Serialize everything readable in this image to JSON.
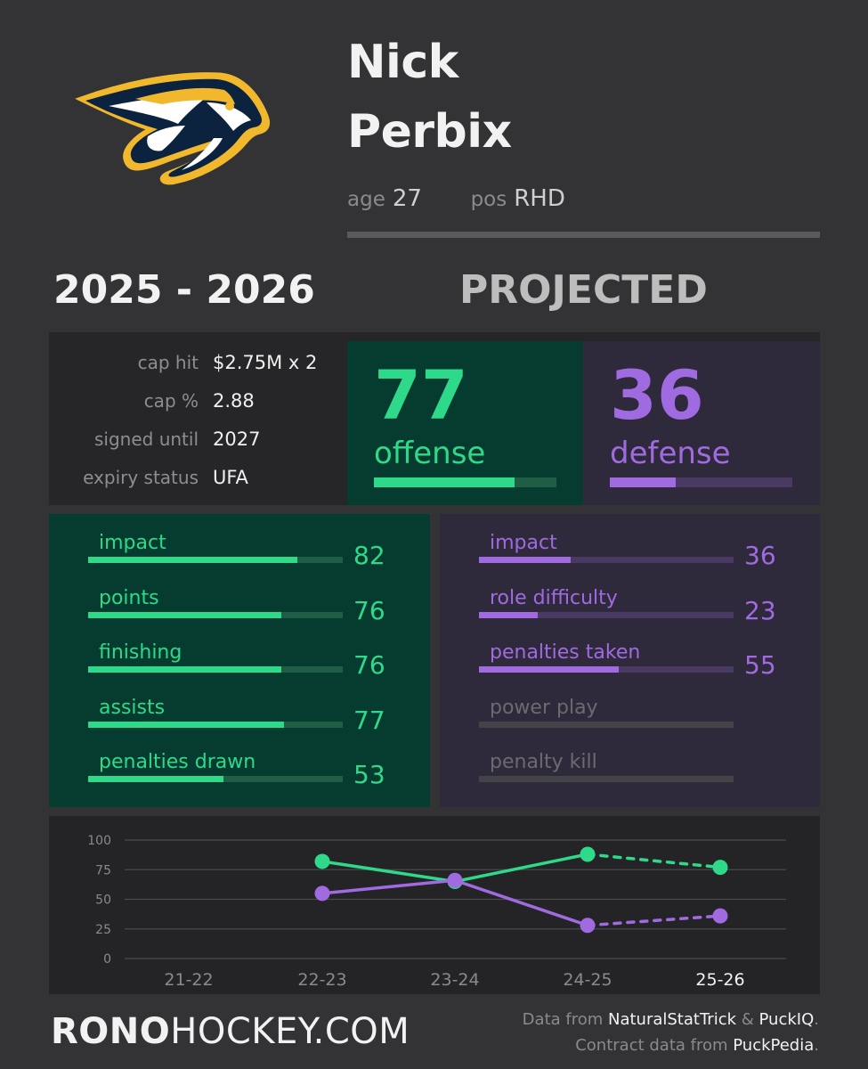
{
  "colors": {
    "offense": "#2fd98a",
    "offense_track": "#1f5e45",
    "defense": "#a06ae0",
    "defense_track": "#4a3a63",
    "inactive": "#6b6b6f",
    "inactive_track": "#444448"
  },
  "logo": {
    "icon": "nashville-predators-logo"
  },
  "player": {
    "first_name": "Nick",
    "last_name": "Perbix",
    "age_label": "age",
    "age": "27",
    "pos_label": "pos",
    "pos": "RHD"
  },
  "season": "2025 - 2026",
  "status": "PROJECTED",
  "contract": [
    {
      "label": "cap hit",
      "value": "$2.75M x 2"
    },
    {
      "label": "cap %",
      "value": "2.88"
    },
    {
      "label": "signed until",
      "value": "2027"
    },
    {
      "label": "expiry status",
      "value": "UFA"
    }
  ],
  "offense": {
    "score": "77",
    "label": "offense",
    "fraction": 0.77
  },
  "defense": {
    "score": "36",
    "label": "defense",
    "fraction": 0.36
  },
  "offense_metrics": [
    {
      "label": "impact",
      "value": "82",
      "fraction": 0.82
    },
    {
      "label": "points",
      "value": "76",
      "fraction": 0.76
    },
    {
      "label": "finishing",
      "value": "76",
      "fraction": 0.76
    },
    {
      "label": "assists",
      "value": "77",
      "fraction": 0.77
    },
    {
      "label": "penalties drawn",
      "value": "53",
      "fraction": 0.53
    }
  ],
  "defense_metrics": [
    {
      "label": "impact",
      "value": "36",
      "fraction": 0.36,
      "active": true
    },
    {
      "label": "role difficulty",
      "value": "23",
      "fraction": 0.23,
      "active": true
    },
    {
      "label": "penalties taken",
      "value": "55",
      "fraction": 0.55,
      "active": true
    },
    {
      "label": "power play",
      "value": "",
      "fraction": 0,
      "active": false
    },
    {
      "label": "penalty kill",
      "value": "",
      "fraction": 0,
      "active": false
    }
  ],
  "chart_data": {
    "type": "line",
    "categories": [
      "21-22",
      "22-23",
      "23-24",
      "24-25",
      "25-26"
    ],
    "highlight_category": "25-26",
    "ylim": [
      0,
      100
    ],
    "yticks": [
      "0",
      "25",
      "50",
      "75",
      "100"
    ],
    "grid": true,
    "series": [
      {
        "key": "offense",
        "values": [
          null,
          82,
          65,
          88,
          77
        ],
        "projected_from_index": 3
      },
      {
        "key": "defense",
        "values": [
          null,
          55,
          66,
          28,
          36
        ],
        "projected_from_index": 3
      }
    ]
  },
  "footer": {
    "brand_bold": "RONO",
    "brand_light": "HOCKEY.COM",
    "credits_line1_prefix": "Data from ",
    "credits_source1": "NaturalStatTrick",
    "credits_amp": " & ",
    "credits_source2": "PuckIQ",
    "credits_dot": ".",
    "credits_line2_prefix": "Contract data from ",
    "credits_source3": "PuckPedia",
    "credits_dot2": "."
  }
}
